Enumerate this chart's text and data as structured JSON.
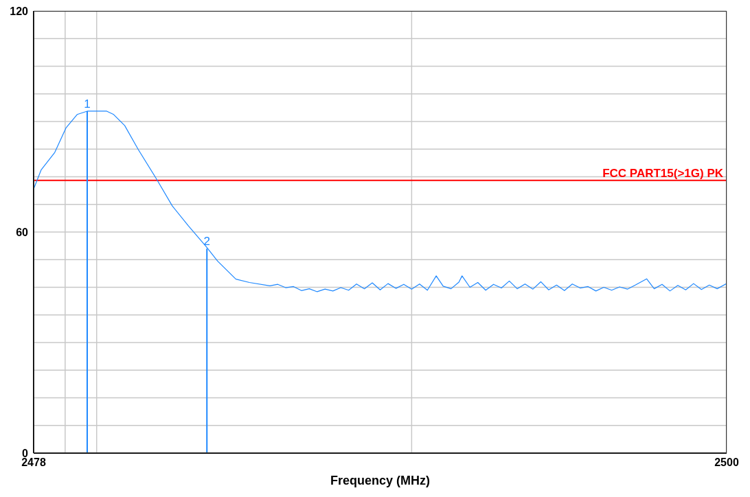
{
  "chart_data": {
    "type": "line",
    "xlabel": "Frequency (MHz)",
    "xlim": [
      2478,
      2500
    ],
    "xticks": [
      2478,
      {
        "value": 2479,
        "label": null
      },
      {
        "value": 2480,
        "label": null
      },
      {
        "value": 2490,
        "label": null
      },
      2500
    ],
    "ylim": [
      0,
      120
    ],
    "yticks": [
      0,
      {
        "value": 7.5,
        "label": null
      },
      {
        "value": 15,
        "label": null
      },
      {
        "value": 22.5,
        "label": null
      },
      {
        "value": 30,
        "label": null
      },
      {
        "value": 37.5,
        "label": null
      },
      {
        "value": 45,
        "label": null
      },
      {
        "value": 52.5,
        "label": null
      },
      60,
      {
        "value": 67.5,
        "label": null
      },
      {
        "value": 75,
        "label": null
      },
      {
        "value": 82.5,
        "label": null
      },
      {
        "value": 90,
        "label": null
      },
      {
        "value": 97.5,
        "label": null
      },
      {
        "value": 105,
        "label": null
      },
      {
        "value": 112.5,
        "label": null
      },
      120
    ],
    "grid": true,
    "marker": "none",
    "line_style": "solid",
    "series": [
      {
        "color": "#1e88ff",
        "x": [
          2478,
          2478.24,
          2478.67,
          2479.03,
          2479.38,
          2479.7,
          2480.32,
          2480.54,
          2480.89,
          2481.32,
          2481.9,
          2482.4,
          2482.91,
          2483.47,
          2483.84,
          2484.42,
          2484.85,
          2485.5,
          2485.75,
          2486,
          2486.25,
          2486.5,
          2486.75,
          2487,
          2487.25,
          2487.5,
          2487.75,
          2488,
          2488.25,
          2488.5,
          2488.75,
          2489,
          2489.25,
          2489.5,
          2489.75,
          2490,
          2490.25,
          2490.5,
          2490.78,
          2491,
          2491.25,
          2491.5,
          2491.6,
          2491.85,
          2492.1,
          2492.35,
          2492.6,
          2492.85,
          2493.1,
          2493.35,
          2493.6,
          2493.85,
          2494.1,
          2494.35,
          2494.6,
          2494.85,
          2495.1,
          2495.35,
          2495.6,
          2495.85,
          2496.1,
          2496.35,
          2496.6,
          2496.85,
          2497.1,
          2497.46,
          2497.7,
          2497.95,
          2498.2,
          2498.45,
          2498.7,
          2498.95,
          2499.2,
          2499.45,
          2499.7,
          2500
        ],
        "values": [
          71.7,
          76.9,
          81.6,
          88.3,
          91.9,
          92.8,
          92.8,
          91.9,
          88.9,
          82.4,
          74.4,
          67.1,
          61.7,
          56.1,
          52.1,
          47.2,
          46.3,
          45.4,
          45.8,
          44.9,
          45.2,
          44.1,
          44.6,
          43.8,
          44.5,
          44,
          44.9,
          44.2,
          45.9,
          44.6,
          46.2,
          44.3,
          46,
          44.7,
          45.8,
          44.5,
          45.9,
          44.2,
          48.1,
          45.3,
          44.6,
          46.4,
          48.1,
          45,
          46.3,
          44.2,
          45.8,
          44.8,
          46.7,
          44.6,
          45.9,
          44.5,
          46.5,
          44.3,
          45.6,
          44.1,
          45.9,
          44.8,
          45.2,
          44,
          45,
          44.2,
          45.1,
          44.5,
          45.6,
          47.3,
          44.6,
          45.8,
          44,
          45.5,
          44.3,
          46,
          44.4,
          45.6,
          44.6,
          46
        ]
      }
    ],
    "ref_lines": [
      {
        "axis": "y",
        "value": 74,
        "label": "FCC PART15(>1G) PK",
        "color": "#ff0000"
      }
    ],
    "annotations": [
      {
        "text": "1",
        "x": 2479.7,
        "y": 92.8
      },
      {
        "text": "2",
        "x": 2483.5,
        "y": 55.5
      }
    ]
  }
}
